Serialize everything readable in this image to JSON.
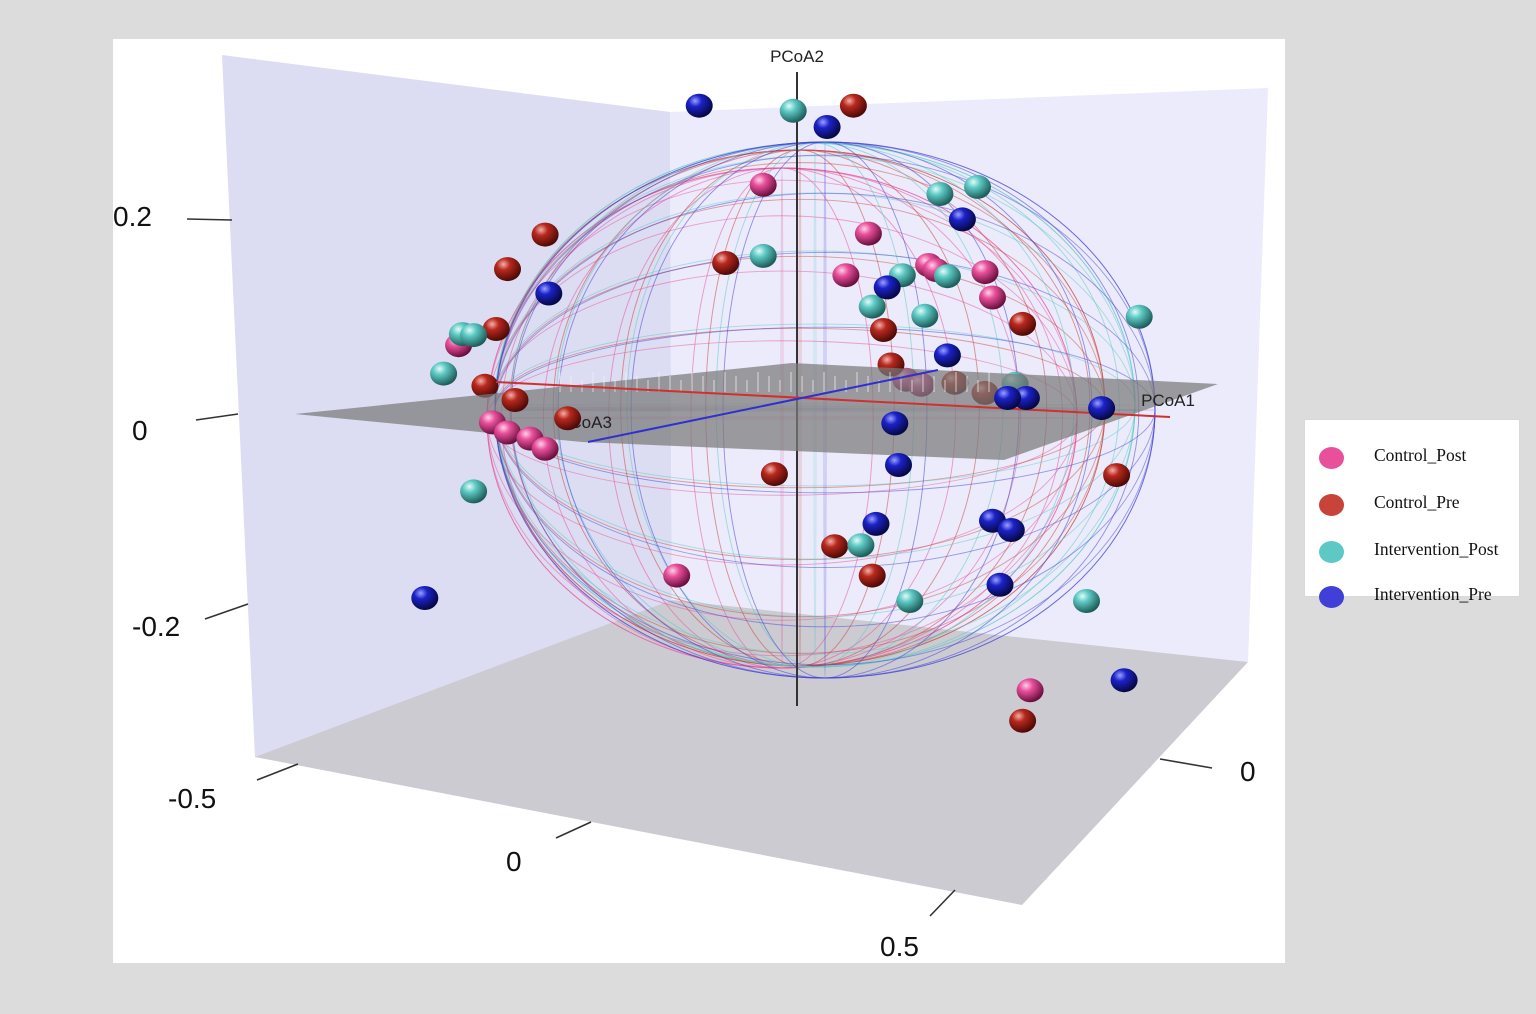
{
  "chart_data": {
    "type": "scatter",
    "projection": "3d-perspective",
    "axes": {
      "x": {
        "label": "PCoA1",
        "ticks": [
          "0"
        ]
      },
      "y": {
        "label": "PCoA2",
        "ticks": [
          "0.2",
          "0",
          "-0.2"
        ]
      },
      "z": {
        "label": "PCoA3",
        "ticks": [
          "-0.5",
          "0",
          "0.5"
        ]
      }
    },
    "grid": false,
    "legend": {
      "placement": "right",
      "entries": [
        {
          "key": "Control_Post",
          "label": "Control_Post",
          "color": "#e8509c"
        },
        {
          "key": "Control_Pre",
          "label": "Control_Pre",
          "color": "#c8433a"
        },
        {
          "key": "Intervention_Post",
          "label": "Intervention_Post",
          "color": "#5ec9c4"
        },
        {
          "key": "Intervention_Pre",
          "label": "Intervention_Pre",
          "color": "#4040d8"
        }
      ]
    },
    "ellipsoids": [
      "Control_Post",
      "Control_Pre",
      "Intervention_Post",
      "Intervention_Pre"
    ],
    "series": [
      {
        "key": "Control_Post",
        "x": [
          -0.09,
          0.19,
          0.13,
          0.35,
          0.37,
          0.5,
          0.52,
          -0.32,
          -0.9,
          -0.81,
          -0.77,
          -0.71,
          -0.67,
          0.29,
          0.33,
          0.62
        ],
        "y": [
          0.21,
          0.162,
          0.121,
          0.131,
          0.126,
          0.124,
          0.099,
          -0.175,
          0.052,
          -0.024,
          -0.034,
          -0.04,
          -0.05,
          0.018,
          0.013,
          -0.288
        ]
      },
      {
        "key": "Control_Pre",
        "x": [
          0.15,
          -0.67,
          -0.77,
          -0.19,
          0.23,
          0.6,
          -0.8,
          -0.83,
          -0.75,
          -0.61,
          0.25,
          0.42,
          0.5,
          0.2,
          -0.06,
          0.1,
          0.6,
          0.85
        ],
        "y": [
          0.288,
          0.161,
          0.127,
          0.133,
          0.067,
          0.073,
          0.068,
          0.012,
          -0.002,
          -0.02,
          0.033,
          0.015,
          0.005,
          -0.175,
          -0.075,
          -0.146,
          -0.318,
          -0.076
        ]
      },
      {
        "key": "Intervention_Post",
        "x": [
          -0.01,
          0.38,
          0.48,
          -0.09,
          0.28,
          0.4,
          0.2,
          0.34,
          -0.89,
          -0.86,
          -0.94,
          -0.86,
          0.17,
          0.58,
          0.91,
          0.3,
          0.77
        ],
        "y": [
          0.283,
          0.201,
          0.208,
          0.14,
          0.121,
          0.12,
          0.09,
          0.081,
          0.063,
          0.062,
          0.024,
          -0.092,
          -0.145,
          0.014,
          0.08,
          -0.2,
          -0.2
        ]
      },
      {
        "key": "Intervention_Pre",
        "x": [
          -0.26,
          0.08,
          0.44,
          0.24,
          -0.66,
          0.61,
          0.4,
          0.26,
          0.27,
          0.21,
          0.52,
          0.57,
          0.54,
          -0.99,
          0.81,
          0.87,
          0.56
        ],
        "y": [
          0.288,
          0.267,
          0.176,
          0.109,
          0.103,
          0.0,
          0.042,
          -0.025,
          -0.066,
          -0.124,
          -0.121,
          -0.13,
          -0.184,
          -0.197,
          -0.01,
          -0.278,
          0.0
        ]
      }
    ]
  }
}
